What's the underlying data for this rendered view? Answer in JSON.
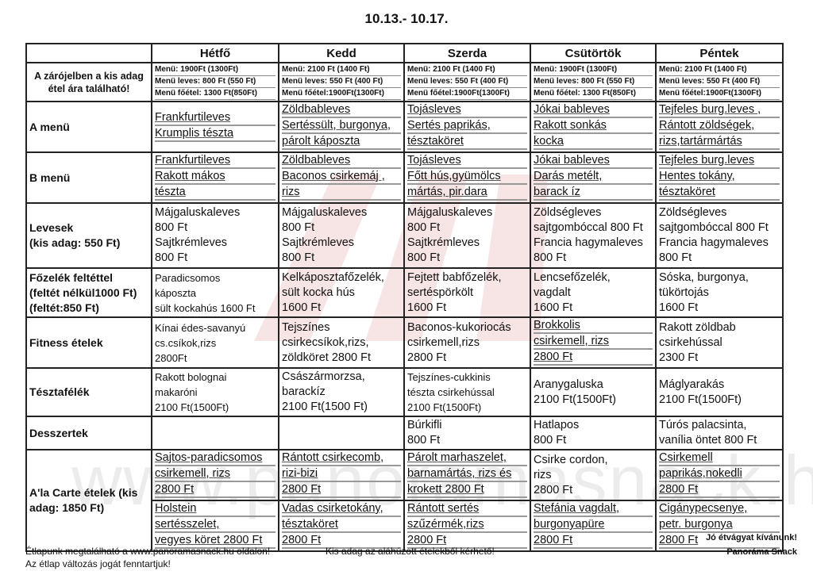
{
  "title": "10.13.- 10.17.",
  "watermark": "www.panoramasnack.hu",
  "accent_color": "#c0282d",
  "days": [
    "Hétfő",
    "Kedd",
    "Szerda",
    "Csütörtök",
    "Péntek"
  ],
  "info_label": [
    "A zárójelben a kis adag",
    "étel ára található!"
  ],
  "info": [
    [
      "Menü:  1900Ft (1300Ft)",
      "Menü leves: 800 Ft (550 Ft)",
      "Menü főétel: 1300 Ft(850Ft)"
    ],
    [
      "Menü: 2100 Ft (1400 Ft)",
      "Menü leves: 550 Ft (400 Ft)",
      "Menü főétel:1900Ft(1300Ft)"
    ],
    [
      "Menü: 2100 Ft (1400 Ft)",
      "Menü leves: 550 Ft (400 Ft)",
      "Menü főétel:1900Ft(1300Ft)"
    ],
    [
      "Menü:  1900Ft (1300Ft)",
      "Menü leves: 800 Ft (550 Ft)",
      "Menü főétel: 1300 Ft(850Ft)"
    ],
    [
      "Menü: 2100 Ft (1400 Ft)",
      "Menü leves: 550 Ft (400 Ft)",
      "Menü főétel:1900Ft(1300Ft)"
    ]
  ],
  "rows": [
    {
      "label": [
        "A menü"
      ],
      "h": 63,
      "cells": [
        {
          "u": true,
          "lines": [
            "Frankfurtileves",
            "Krumplis tészta"
          ]
        },
        {
          "u": true,
          "lines": [
            "Zöldbableves",
            "Sertéssült, burgonya,",
            "párolt káposzta"
          ]
        },
        {
          "u": true,
          "lines": [
            "Tojásleves",
            "Sertés paprikás,",
            "tésztaköret"
          ]
        },
        {
          "u": true,
          "lines": [
            "Jókai bableves",
            "Rakott sonkás",
            "kocka"
          ]
        },
        {
          "u": true,
          "lines": [
            "Tejfeles burg.leves ,",
            "Rántott zöldségek,",
            "rizs,tartármártás"
          ]
        }
      ]
    },
    {
      "label": [
        "B menü"
      ],
      "h": 63,
      "cells": [
        {
          "u": true,
          "lines": [
            "Frankfurtileves",
            "Rakott mákos",
            "tészta"
          ]
        },
        {
          "u": true,
          "lines": [
            "Zöldbableves",
            "Baconos csirkemáj  ,",
            "rizs"
          ]
        },
        {
          "u": true,
          "lines": [
            "Tojásleves",
            "Főtt hús,gyümölcs",
            "mártás, pir.dara"
          ]
        },
        {
          "u": true,
          "lines": [
            "Jókai bableves",
            "Darás metélt,",
            "barack íz"
          ]
        },
        {
          "u": true,
          "lines": [
            "Tejfeles burg.leves",
            "Hentes tokány,",
            "tésztaköret"
          ]
        }
      ]
    },
    {
      "label": [
        "Levesek",
        "(kis adag: 550 Ft)"
      ],
      "h": 82,
      "cells": [
        {
          "u": false,
          "lines": [
            "Májgaluskaleves",
            "800 Ft",
            "Sajtkrémleves",
            "800 Ft"
          ]
        },
        {
          "u": false,
          "lines": [
            "Májgaluskaleves",
            "800 Ft",
            "Sajtkrémleves",
            "800 Ft"
          ]
        },
        {
          "u": false,
          "lines": [
            "Májgaluskaleves",
            "800 Ft",
            "Sajtkrémleves",
            "800 Ft"
          ]
        },
        {
          "u": false,
          "lines": [
            "Zöldségleves",
            "sajtgombóccal  800 Ft",
            "Francia hagymaleves",
            "800 Ft"
          ]
        },
        {
          "u": false,
          "lines": [
            "Zöldségleves",
            "sajtgombóccal  800 Ft",
            "Francia hagymaleves",
            "800 Ft"
          ]
        }
      ]
    },
    {
      "label": [
        "Főzelék feltéttel",
        "(feltét nélkül1000 Ft)",
        "(feltét:850 Ft)"
      ],
      "h": 62,
      "cells": [
        {
          "u": false,
          "small": true,
          "lines": [
            "Paradicsomos",
            "káposzta",
            "sült kockahús 1600 Ft"
          ]
        },
        {
          "u": false,
          "lines": [
            "Kelkáposztafőzelék,",
            "sült kocka hús",
            "1600 Ft"
          ]
        },
        {
          "u": false,
          "lines": [
            "Fejtett babfőzelék,",
            "sertéspörkölt",
            "1600 Ft"
          ]
        },
        {
          "u": false,
          "lines": [
            "Lencsefőzelék,",
            "vagdalt",
            "1600 Ft"
          ]
        },
        {
          "u": false,
          "lines": [
            "Sóska, burgonya,",
            "tükörtojás",
            "1600 Ft"
          ]
        }
      ]
    },
    {
      "label": [
        "Fitness ételek"
      ],
      "h": 60,
      "cells": [
        {
          "u": false,
          "small": true,
          "lines": [
            "Kínai édes-savanyú",
            "cs.csíkok,rizs",
            "2800Ft"
          ]
        },
        {
          "u": false,
          "lines": [
            "Tejszínes",
            "csirkecsíkok,rizs,",
            "zöldköret     2800 Ft"
          ]
        },
        {
          "u": false,
          "lines": [
            "Baconos-kukoriocás",
            "csirkemell,rizs",
            "2800 Ft"
          ]
        },
        {
          "u": true,
          "lines": [
            "Brokkolis",
            "csirkemell,  rizs",
            "2800 Ft"
          ]
        },
        {
          "u": false,
          "lines": [
            "Rakott zöldbab",
            "csirkehússal",
            "2300 Ft"
          ]
        }
      ]
    },
    {
      "label": [
        "Tésztafélék"
      ],
      "h": 55,
      "cells": [
        {
          "u": false,
          "small": true,
          "lines": [
            "Rakott bolognai",
            "makaróni",
            "2100 Ft(1500Ft)"
          ]
        },
        {
          "u": false,
          "lines": [
            "Császármorzsa,",
            "barackíz",
            "2100 Ft(1500 Ft)"
          ]
        },
        {
          "u": false,
          "small": true,
          "lines": [
            "Tejszínes-cukkinis",
            "tészta csirkehússal",
            "2100 Ft(1500Ft)"
          ]
        },
        {
          "u": false,
          "lines": [
            "Aranygaluska",
            "2100 Ft(1500Ft)"
          ]
        },
        {
          "u": false,
          "lines": [
            "Máglyarakás",
            "2100 Ft(1500Ft)"
          ]
        }
      ]
    },
    {
      "label": [
        "Desszertek"
      ],
      "h": 42,
      "cells": [
        {
          "u": false,
          "lines": []
        },
        {
          "u": false,
          "lines": []
        },
        {
          "u": false,
          "lines": [
            "Búrkifli",
            "800 Ft"
          ]
        },
        {
          "u": false,
          "lines": [
            "Hatlapos",
            "800 Ft"
          ]
        },
        {
          "u": false,
          "lines": [
            "Túrós palacsinta,",
            "vanília öntet    800 Ft"
          ]
        }
      ]
    }
  ],
  "alacarte": {
    "label": [
      "A'la Carte ételek (kis",
      "adag: 1850 Ft)"
    ],
    "top": [
      {
        "u": true,
        "lines": [
          "Sajtos-paradicsomos",
          "csirkemell, rizs",
          "2800 Ft"
        ]
      },
      {
        "u": true,
        "lines": [
          "Rántott csirkecomb,",
          "rizi-bizi",
          "2800 Ft"
        ]
      },
      {
        "u": true,
        "lines": [
          "Párolt marhaszelet,",
          "barnamártás, rizs és",
          "krokett      2800 Ft"
        ]
      },
      {
        "u": false,
        "lines": [
          "Csirke cordon,",
          "rizs",
          "2800 Ft"
        ]
      },
      {
        "u": true,
        "lines": [
          "Csirkemell",
          "paprikás,nokedli",
          "2800 Ft"
        ]
      }
    ],
    "bottom": [
      {
        "u": true,
        "lines": [
          "Holstein",
          "sertésszelet,",
          "vegyes köret   2800 Ft"
        ]
      },
      {
        "u": true,
        "lines": [
          "Vadas csirketokány,",
          "tésztaköret",
          "2800 Ft"
        ]
      },
      {
        "u": true,
        "lines": [
          "Rántott sertés",
          "szűzérmék,rizs",
          "2800 Ft"
        ]
      },
      {
        "u": true,
        "lines": [
          "Stefánia vagdalt,",
          "burgonyapüre",
          "2800 Ft"
        ]
      },
      {
        "u": true,
        "lines": [
          "Cigánypecsenye,",
          "petr. burgonya",
          "2800 Ft"
        ]
      }
    ]
  },
  "footer": {
    "website_note": "Étlapunk megtalálható a www.panoramasnack.hu oldalon!",
    "rights_note": "Az étlap változás jogát fenntartjuk!",
    "small_portion_note": "Kis adag az aláhúzott ételekből kérhető!",
    "greeting": "Jó étvágyat kívánunk!",
    "brand": "Panoráma Snack"
  }
}
